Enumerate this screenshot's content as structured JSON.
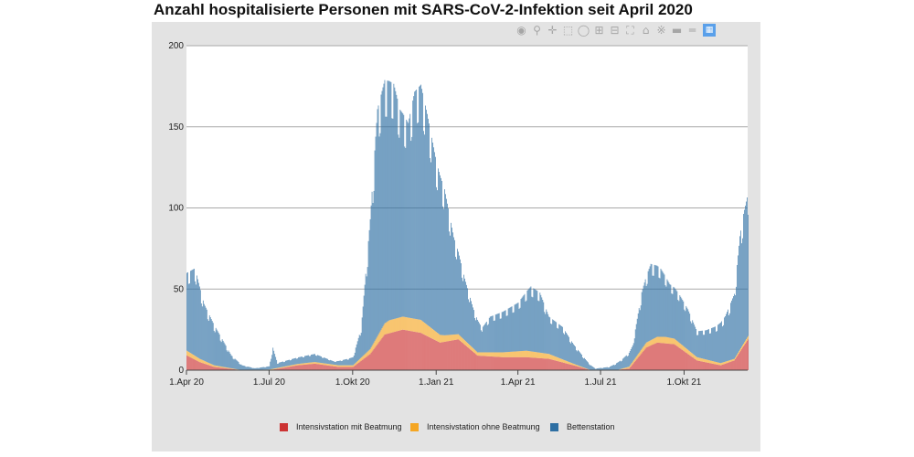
{
  "title": "Anzahl hospitalisierte Personen mit SARS-CoV-2-Infektion seit April 2020",
  "toolbar": {
    "icons": [
      "camera-icon",
      "zoom-icon",
      "pan-icon",
      "box-select-icon",
      "lasso-icon",
      "zoom-in-icon",
      "zoom-out-icon",
      "autoscale-icon",
      "home-icon",
      "spike-lines-icon",
      "hover-closest-icon",
      "hover-compare-icon",
      "plotly-logo-icon"
    ]
  },
  "chart_data": {
    "type": "bar",
    "stacked": true,
    "x_start": "2020-04-01",
    "x_end": "2021-12-10",
    "ylim": [
      0,
      200
    ],
    "yticks": [
      0,
      50,
      100,
      150,
      200
    ],
    "xticks": [
      {
        "date": "2020-04-01",
        "label": "1.Apr 20"
      },
      {
        "date": "2020-07-01",
        "label": "1.Jul 20"
      },
      {
        "date": "2020-10-01",
        "label": "1.Okt 20"
      },
      {
        "date": "2021-01-01",
        "label": "1.Jan 21"
      },
      {
        "date": "2021-04-01",
        "label": "1.Apr 21"
      },
      {
        "date": "2021-07-01",
        "label": "1.Jul 21"
      },
      {
        "date": "2021-10-01",
        "label": "1.Okt 21"
      }
    ],
    "grid": true,
    "legend_position": "bottom",
    "series": [
      {
        "name": "Intensivstation mit Beatmung",
        "color": "#cc3333",
        "points": [
          [
            "2020-04-01",
            9
          ],
          [
            "2020-04-15",
            5
          ],
          [
            "2020-05-01",
            2
          ],
          [
            "2020-06-01",
            0
          ],
          [
            "2020-07-01",
            0
          ],
          [
            "2020-08-01",
            3
          ],
          [
            "2020-08-20",
            4
          ],
          [
            "2020-09-15",
            2
          ],
          [
            "2020-10-01",
            2
          ],
          [
            "2020-10-20",
            10
          ],
          [
            "2020-11-05",
            22
          ],
          [
            "2020-11-25",
            25
          ],
          [
            "2020-12-15",
            23
          ],
          [
            "2021-01-05",
            17
          ],
          [
            "2021-01-25",
            19
          ],
          [
            "2021-02-15",
            9
          ],
          [
            "2021-03-15",
            8
          ],
          [
            "2021-04-10",
            8
          ],
          [
            "2021-05-05",
            7
          ],
          [
            "2021-06-01",
            3
          ],
          [
            "2021-06-20",
            0
          ],
          [
            "2021-07-15",
            0
          ],
          [
            "2021-08-01",
            1
          ],
          [
            "2021-08-20",
            14
          ],
          [
            "2021-09-01",
            17
          ],
          [
            "2021-09-20",
            16
          ],
          [
            "2021-10-15",
            6
          ],
          [
            "2021-11-10",
            3
          ],
          [
            "2021-11-25",
            6
          ],
          [
            "2021-12-10",
            19
          ]
        ]
      },
      {
        "name": "Intensivstation ohne Beatmung",
        "color": "#f5a623",
        "points": [
          [
            "2020-04-01",
            3
          ],
          [
            "2020-05-01",
            1
          ],
          [
            "2020-06-01",
            0
          ],
          [
            "2020-08-15",
            1
          ],
          [
            "2020-10-01",
            1
          ],
          [
            "2020-10-20",
            3
          ],
          [
            "2020-11-10",
            8
          ],
          [
            "2020-12-15",
            8
          ],
          [
            "2021-01-10",
            4
          ],
          [
            "2021-02-15",
            2
          ],
          [
            "2021-03-15",
            3
          ],
          [
            "2021-04-10",
            4
          ],
          [
            "2021-05-05",
            3
          ],
          [
            "2021-06-01",
            1
          ],
          [
            "2021-06-20",
            0
          ],
          [
            "2021-07-20",
            0
          ],
          [
            "2021-08-20",
            3
          ],
          [
            "2021-09-10",
            4
          ],
          [
            "2021-10-15",
            2
          ],
          [
            "2021-11-25",
            1
          ],
          [
            "2021-12-10",
            2
          ]
        ]
      },
      {
        "name": "Bettenstation",
        "color": "#2e6fa3",
        "points": [
          [
            "2020-04-01",
            48
          ],
          [
            "2020-04-10",
            54
          ],
          [
            "2020-04-20",
            35
          ],
          [
            "2020-05-01",
            25
          ],
          [
            "2020-05-20",
            8
          ],
          [
            "2020-06-01",
            3
          ],
          [
            "2020-06-15",
            1
          ],
          [
            "2020-07-01",
            2
          ],
          [
            "2020-07-05",
            13
          ],
          [
            "2020-07-10",
            3
          ],
          [
            "2020-08-01",
            4
          ],
          [
            "2020-08-20",
            5
          ],
          [
            "2020-09-10",
            2
          ],
          [
            "2020-09-25",
            4
          ],
          [
            "2020-10-01",
            5
          ],
          [
            "2020-10-10",
            18
          ],
          [
            "2020-10-20",
            80
          ],
          [
            "2020-10-28",
            140
          ],
          [
            "2020-11-05",
            150
          ],
          [
            "2020-11-15",
            145
          ],
          [
            "2020-11-22",
            128
          ],
          [
            "2020-12-01",
            120
          ],
          [
            "2020-12-08",
            140
          ],
          [
            "2020-12-15",
            145
          ],
          [
            "2020-12-22",
            130
          ],
          [
            "2021-01-01",
            105
          ],
          [
            "2021-01-10",
            90
          ],
          [
            "2021-01-20",
            60
          ],
          [
            "2021-02-01",
            38
          ],
          [
            "2021-02-10",
            25
          ],
          [
            "2021-02-20",
            15
          ],
          [
            "2021-03-01",
            22
          ],
          [
            "2021-03-15",
            25
          ],
          [
            "2021-04-01",
            30
          ],
          [
            "2021-04-15",
            40
          ],
          [
            "2021-04-25",
            37
          ],
          [
            "2021-05-05",
            23
          ],
          [
            "2021-05-20",
            20
          ],
          [
            "2021-06-01",
            12
          ],
          [
            "2021-06-15",
            5
          ],
          [
            "2021-06-25",
            1
          ],
          [
            "2021-07-10",
            2
          ],
          [
            "2021-07-25",
            6
          ],
          [
            "2021-08-05",
            10
          ],
          [
            "2021-08-15",
            35
          ],
          [
            "2021-08-25",
            47
          ],
          [
            "2021-09-05",
            42
          ],
          [
            "2021-09-15",
            33
          ],
          [
            "2021-09-25",
            30
          ],
          [
            "2021-10-05",
            25
          ],
          [
            "2021-10-15",
            16
          ],
          [
            "2021-10-25",
            18
          ],
          [
            "2021-11-05",
            22
          ],
          [
            "2021-11-15",
            28
          ],
          [
            "2021-11-25",
            40
          ],
          [
            "2021-12-01",
            70
          ],
          [
            "2021-12-05",
            80
          ],
          [
            "2021-12-10",
            88
          ]
        ]
      }
    ]
  }
}
